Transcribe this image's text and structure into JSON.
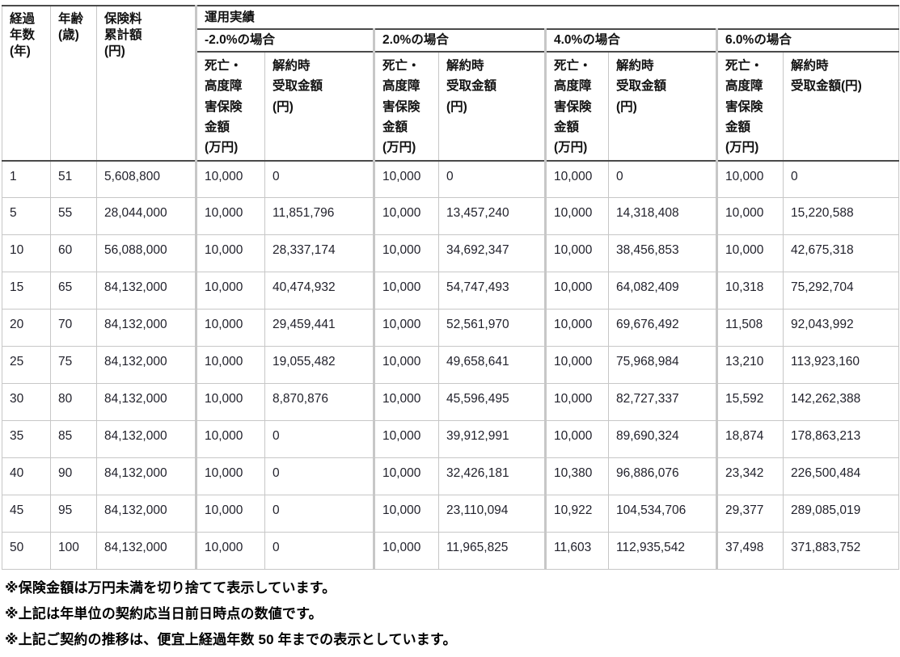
{
  "table": {
    "header": {
      "col_year": "経過\n年数\n(年)",
      "col_age": "年齢\n(歳)",
      "col_premium": "保険料\n累計額\n(円)",
      "col_performance": "運用実績",
      "death_label": "死亡・\n高度障\n害保険\n金額\n(万円)",
      "surrender_label": "解約時\n受取金額\n(円)",
      "surrender_label_inline": "解約時\n受取金額(円)",
      "groups": [
        {
          "label": "-2.0%の場合"
        },
        {
          "label": "2.0%の場合"
        },
        {
          "label": "4.0%の場合"
        },
        {
          "label": "6.0%の場合"
        }
      ]
    },
    "rows": [
      {
        "year": "1",
        "age": "51",
        "premium": "5,608,800",
        "cells": [
          "10,000",
          "0",
          "10,000",
          "0",
          "10,000",
          "0",
          "10,000",
          "0"
        ]
      },
      {
        "year": "5",
        "age": "55",
        "premium": "28,044,000",
        "cells": [
          "10,000",
          "11,851,796",
          "10,000",
          "13,457,240",
          "10,000",
          "14,318,408",
          "10,000",
          "15,220,588"
        ]
      },
      {
        "year": "10",
        "age": "60",
        "premium": "56,088,000",
        "cells": [
          "10,000",
          "28,337,174",
          "10,000",
          "34,692,347",
          "10,000",
          "38,456,853",
          "10,000",
          "42,675,318"
        ]
      },
      {
        "year": "15",
        "age": "65",
        "premium": "84,132,000",
        "cells": [
          "10,000",
          "40,474,932",
          "10,000",
          "54,747,493",
          "10,000",
          "64,082,409",
          "10,318",
          "75,292,704"
        ]
      },
      {
        "year": "20",
        "age": "70",
        "premium": "84,132,000",
        "cells": [
          "10,000",
          "29,459,441",
          "10,000",
          "52,561,970",
          "10,000",
          "69,676,492",
          "11,508",
          "92,043,992"
        ]
      },
      {
        "year": "25",
        "age": "75",
        "premium": "84,132,000",
        "cells": [
          "10,000",
          "19,055,482",
          "10,000",
          "49,658,641",
          "10,000",
          "75,968,984",
          "13,210",
          "113,923,160"
        ]
      },
      {
        "year": "30",
        "age": "80",
        "premium": "84,132,000",
        "cells": [
          "10,000",
          "8,870,876",
          "10,000",
          "45,596,495",
          "10,000",
          "82,727,337",
          "15,592",
          "142,262,388"
        ]
      },
      {
        "year": "35",
        "age": "85",
        "premium": "84,132,000",
        "cells": [
          "10,000",
          "0",
          "10,000",
          "39,912,991",
          "10,000",
          "89,690,324",
          "18,874",
          "178,863,213"
        ]
      },
      {
        "year": "40",
        "age": "90",
        "premium": "84,132,000",
        "cells": [
          "10,000",
          "0",
          "10,000",
          "32,426,181",
          "10,380",
          "96,886,076",
          "23,342",
          "226,500,484"
        ]
      },
      {
        "year": "45",
        "age": "95",
        "premium": "84,132,000",
        "cells": [
          "10,000",
          "0",
          "10,000",
          "23,110,094",
          "10,922",
          "104,534,706",
          "29,377",
          "289,085,019"
        ]
      },
      {
        "year": "50",
        "age": "100",
        "premium": "84,132,000",
        "cells": [
          "10,000",
          "0",
          "10,000",
          "11,965,825",
          "11,603",
          "112,935,542",
          "37,498",
          "371,883,752"
        ]
      }
    ],
    "cell_names": [
      "cell-elapsed-years",
      "cell-age",
      "cell-premium-total",
      "cell-minus2-death-benefit",
      "cell-minus2-surrender-value",
      "cell-plus2-death-benefit",
      "cell-plus2-surrender-value",
      "cell-plus4-death-benefit",
      "cell-plus4-surrender-value",
      "cell-plus6-death-benefit",
      "cell-plus6-surrender-value"
    ]
  },
  "footnotes": [
    "※保険金額は万円未満を切り捨てて表示しています。",
    "※上記は年単位の契約応当日前日時点の数値です。",
    "※上記ご契約の推移は、便宜上経過年数 50 年までの表示としています。"
  ],
  "colors": {
    "rule_dark": "#4a4a4a",
    "rule_light": "#c7c7c7",
    "text": "#22222c"
  }
}
